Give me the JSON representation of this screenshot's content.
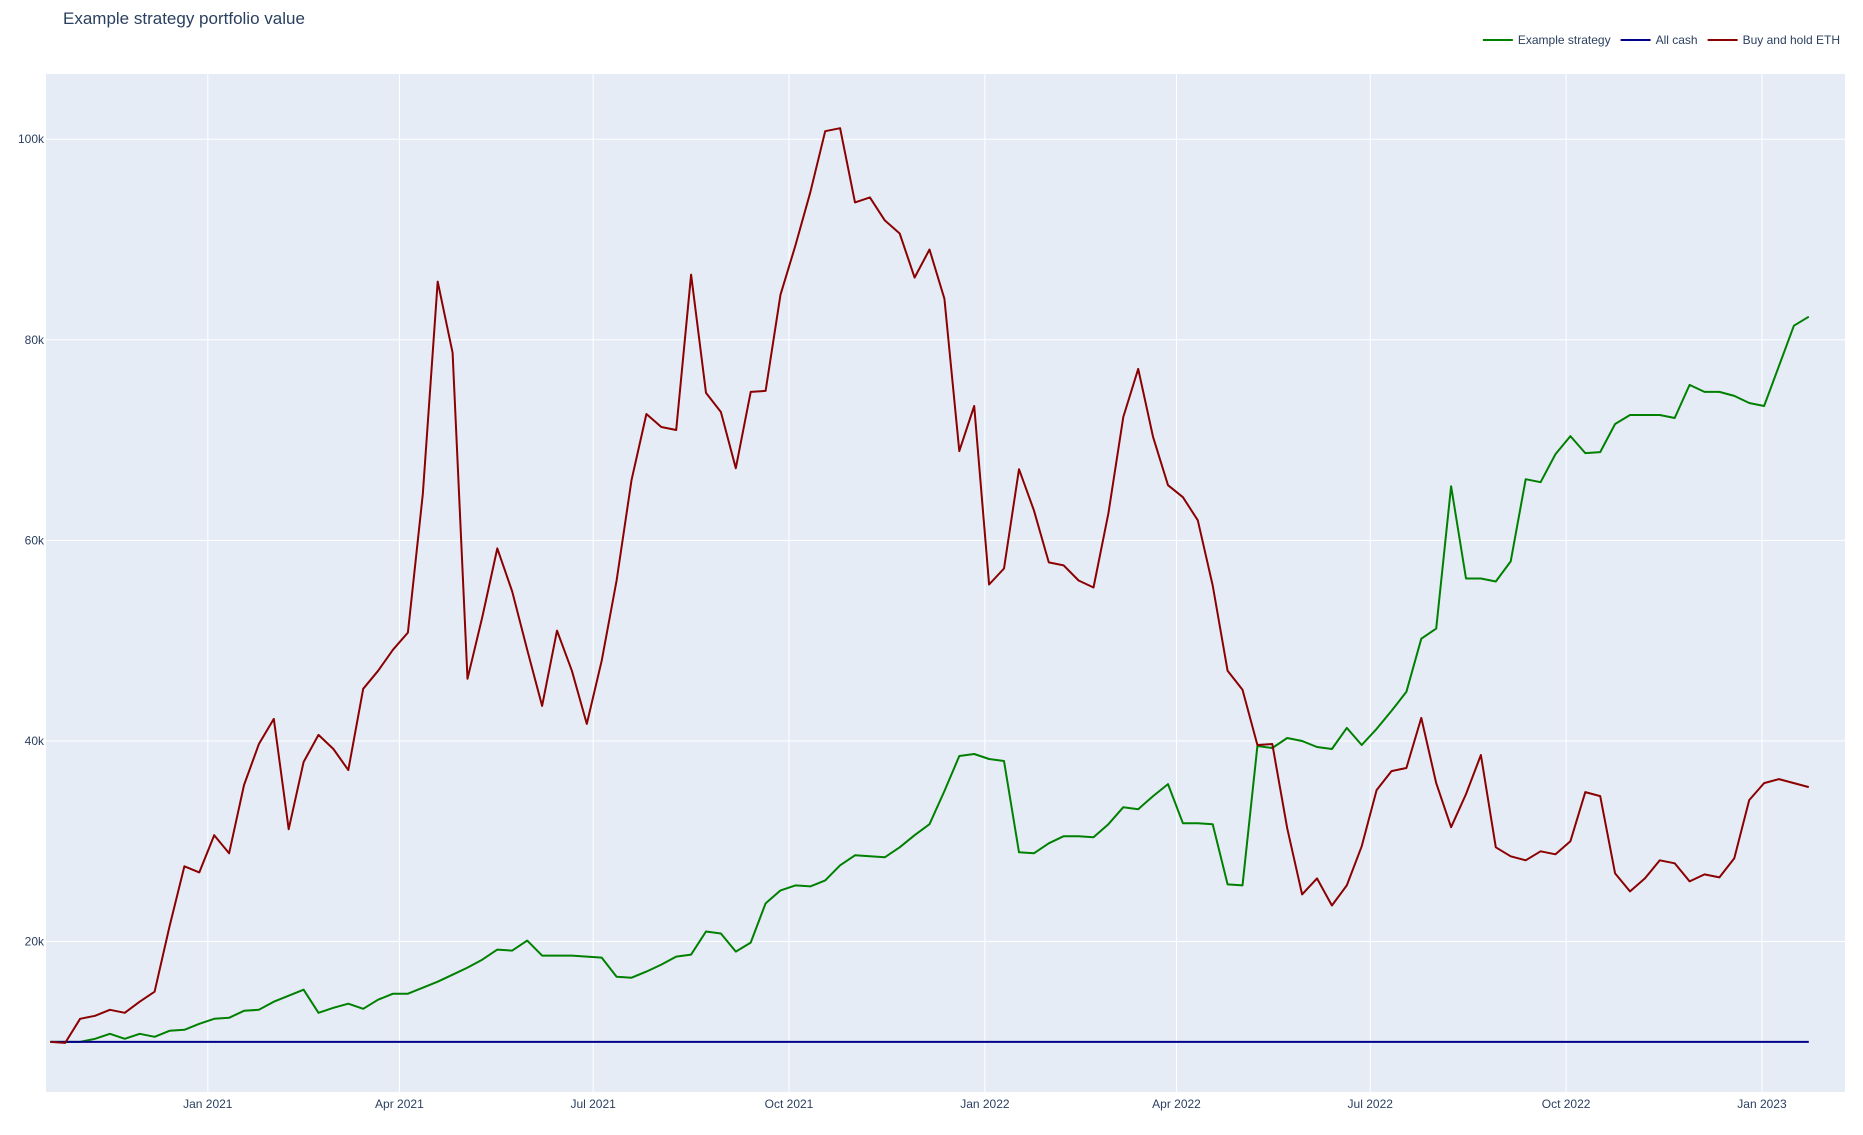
{
  "chart_data": {
    "type": "line",
    "title": "Example strategy portfolio value",
    "xlabel": "",
    "ylabel": "",
    "legend_position": "top-right",
    "grid": true,
    "colors": {
      "plot_bg": "#e5ecf6",
      "grid": "#ffffff",
      "text": "#2a3f5f"
    },
    "x_start": "2020-10-19",
    "x_step_days": 7,
    "x_range": [
      "2020-10-17",
      "2023-02-09"
    ],
    "y_range": [
      5000,
      106500
    ],
    "x_ticks": [
      {
        "date": "2021-01-01",
        "label": "Jan 2021"
      },
      {
        "date": "2021-04-01",
        "label": "Apr 2021"
      },
      {
        "date": "2021-07-01",
        "label": "Jul 2021"
      },
      {
        "date": "2021-10-01",
        "label": "Oct 2021"
      },
      {
        "date": "2022-01-01",
        "label": "Jan 2022"
      },
      {
        "date": "2022-04-01",
        "label": "Apr 2022"
      },
      {
        "date": "2022-07-01",
        "label": "Jul 2022"
      },
      {
        "date": "2022-10-01",
        "label": "Oct 2022"
      },
      {
        "date": "2023-01-01",
        "label": "Jan 2023"
      }
    ],
    "y_ticks": [
      {
        "value": 20000,
        "label": "20k"
      },
      {
        "value": 40000,
        "label": "40k"
      },
      {
        "value": 60000,
        "label": "60k"
      },
      {
        "value": 80000,
        "label": "80k"
      },
      {
        "value": 100000,
        "label": "100k"
      }
    ],
    "series": [
      {
        "name": "Example strategy",
        "color": "#008000",
        "values": [
          10000,
          10000,
          10000,
          10300,
          10800,
          10300,
          10800,
          10500,
          11100,
          11200,
          11800,
          12300,
          12400,
          13100,
          13200,
          14000,
          14600,
          15200,
          12900,
          13400,
          13800,
          13300,
          14200,
          14800,
          14800,
          15400,
          16000,
          16700,
          17400,
          18200,
          19200,
          19100,
          20100,
          18600,
          18600,
          18600,
          18500,
          18400,
          16500,
          16400,
          17000,
          17700,
          18500,
          18700,
          21000,
          20800,
          19000,
          19900,
          23800,
          25100,
          25600,
          25500,
          26100,
          27600,
          28600,
          28500,
          28400,
          29400,
          30600,
          31700,
          35000,
          38500,
          38700,
          38200,
          38000,
          28900,
          28800,
          29800,
          30500,
          30500,
          30400,
          31700,
          33400,
          33200,
          34500,
          35700,
          31800,
          31800,
          31700,
          25700,
          25600,
          39500,
          39300,
          40300,
          40000,
          39400,
          39200,
          41300,
          39600,
          41200,
          43000,
          44900,
          50200,
          51200,
          65400,
          56200,
          56200,
          55900,
          57900,
          66100,
          65800,
          68600,
          70400,
          68700,
          68800,
          71600,
          72500,
          72500,
          72500,
          72200,
          75500,
          74800,
          74800,
          74400,
          73700,
          73400,
          77400,
          81400,
          82300
        ]
      },
      {
        "name": "All cash",
        "color": "#00008b",
        "values": [
          10000,
          10000,
          10000,
          10000,
          10000,
          10000,
          10000,
          10000,
          10000,
          10000,
          10000,
          10000,
          10000,
          10000,
          10000,
          10000,
          10000,
          10000,
          10000,
          10000,
          10000,
          10000,
          10000,
          10000,
          10000,
          10000,
          10000,
          10000,
          10000,
          10000,
          10000,
          10000,
          10000,
          10000,
          10000,
          10000,
          10000,
          10000,
          10000,
          10000,
          10000,
          10000,
          10000,
          10000,
          10000,
          10000,
          10000,
          10000,
          10000,
          10000,
          10000,
          10000,
          10000,
          10000,
          10000,
          10000,
          10000,
          10000,
          10000,
          10000,
          10000,
          10000,
          10000,
          10000,
          10000,
          10000,
          10000,
          10000,
          10000,
          10000,
          10000,
          10000,
          10000,
          10000,
          10000,
          10000,
          10000,
          10000,
          10000,
          10000,
          10000,
          10000,
          10000,
          10000,
          10000,
          10000,
          10000,
          10000,
          10000,
          10000,
          10000,
          10000,
          10000,
          10000,
          10000,
          10000,
          10000,
          10000,
          10000,
          10000,
          10000,
          10000,
          10000,
          10000,
          10000,
          10000,
          10000,
          10000,
          10000,
          10000,
          10000,
          10000,
          10000,
          10000,
          10000,
          10000,
          10000,
          10000,
          10000
        ]
      },
      {
        "name": "Buy and hold ETH",
        "color": "#8b0000",
        "values": [
          10000,
          9900,
          12300,
          12600,
          13200,
          12900,
          14000,
          15000,
          21500,
          27500,
          26900,
          30600,
          28800,
          35600,
          39700,
          42200,
          31200,
          37900,
          40600,
          39200,
          37100,
          45200,
          47000,
          49100,
          50800,
          64600,
          85800,
          78700,
          46200,
          52400,
          59200,
          54900,
          49100,
          43500,
          51000,
          47000,
          41700,
          48000,
          56000,
          66000,
          72600,
          71300,
          71000,
          86500,
          74700,
          72800,
          67200,
          74800,
          74900,
          84500,
          89400,
          94700,
          100800,
          101100,
          93700,
          94200,
          91900,
          90600,
          86200,
          89000,
          84100,
          68900,
          73400,
          55600,
          57200,
          67100,
          63000,
          57800,
          57500,
          56000,
          55300,
          62700,
          72300,
          77100,
          70300,
          65500,
          64300,
          62000,
          55500,
          47000,
          45100,
          39600,
          39700,
          31300,
          24700,
          26300,
          23600,
          25600,
          29500,
          35100,
          37000,
          37300,
          42300,
          35800,
          31400,
          34700,
          38600,
          29400,
          28500,
          28100,
          29000,
          28700,
          30000,
          34900,
          34500,
          26800,
          25000,
          26300,
          28100,
          27800,
          26000,
          26700,
          26400,
          28300,
          34100,
          35800,
          36200,
          35800,
          35400
        ]
      }
    ]
  }
}
